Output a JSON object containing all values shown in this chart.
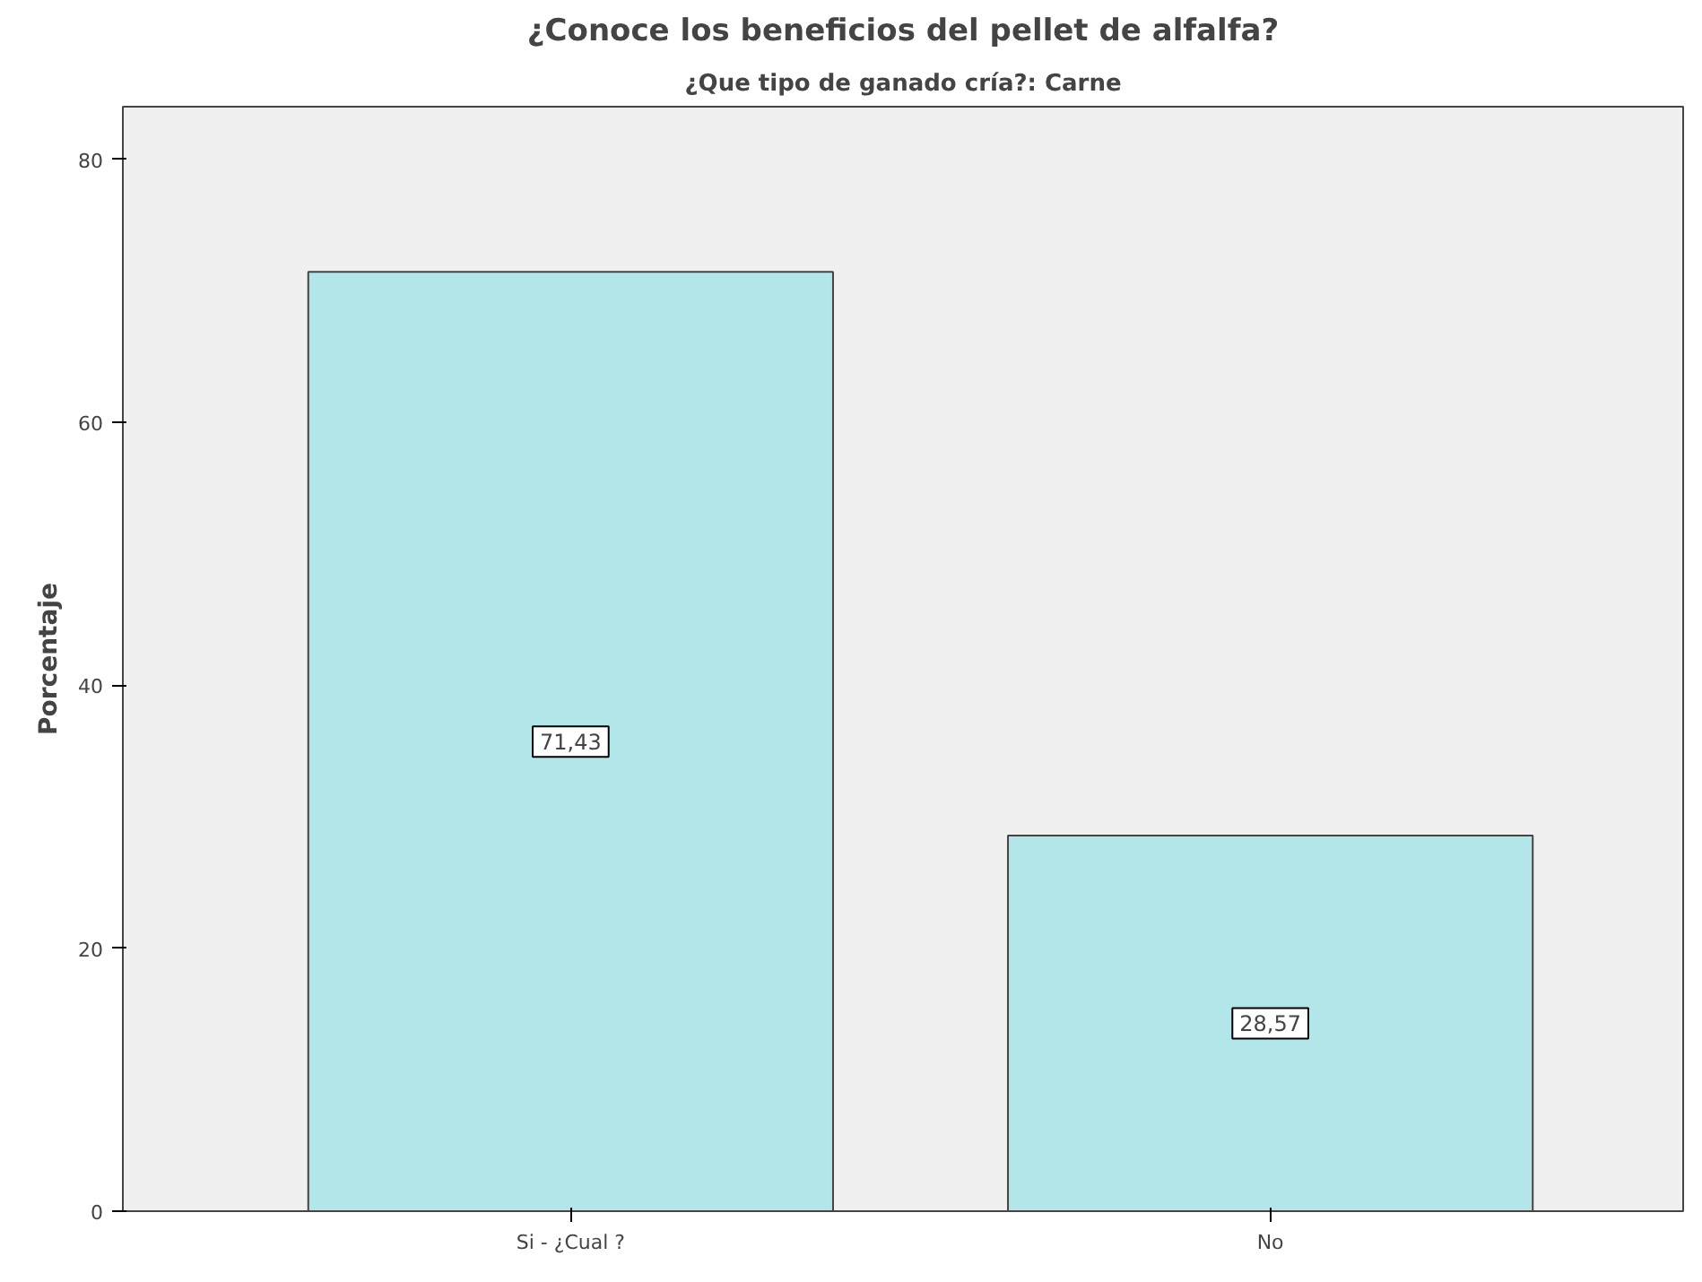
{
  "chart_data": {
    "type": "bar",
    "title": "¿Conoce los beneficios del pellet de alfalfa?",
    "subtitle": "¿Que tipo de ganado cría?: Carne",
    "ylabel": "Porcentaje",
    "categories": [
      "Si - ¿Cual ?",
      "No"
    ],
    "values": [
      71.43,
      28.57
    ],
    "value_labels": [
      "71,43",
      "28,57"
    ],
    "color": "#b3e6e8",
    "ylim": [
      0,
      84
    ],
    "yticks": [
      0,
      20,
      40,
      60,
      80
    ],
    "grid": false
  }
}
